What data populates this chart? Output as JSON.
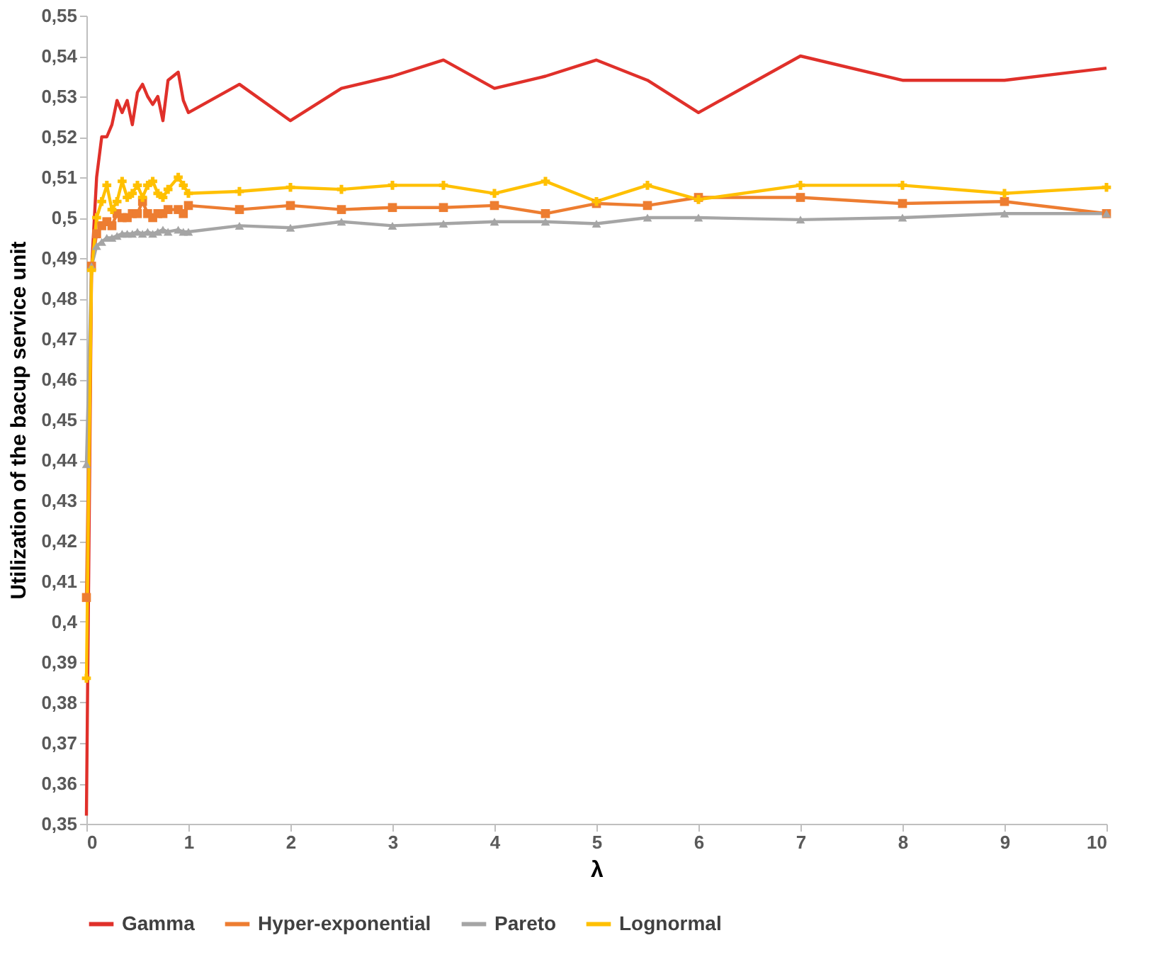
{
  "chart_data": {
    "type": "line",
    "xlabel": "λ",
    "ylabel": "Utilization of the bacup service unit",
    "x": [
      0,
      0.05,
      0.1,
      0.15,
      0.2,
      0.25,
      0.3,
      0.35,
      0.4,
      0.45,
      0.5,
      0.55,
      0.6,
      0.65,
      0.7,
      0.75,
      0.8,
      0.9,
      0.95,
      1,
      1.5,
      2,
      2.5,
      3,
      3.5,
      4,
      4.5,
      5,
      5.5,
      6,
      7,
      8,
      9,
      10
    ],
    "series": [
      {
        "name": "Gamma",
        "color": "#e0302a",
        "marker": "none",
        "values": [
          0.352,
          0.487,
          0.51,
          0.52,
          0.52,
          0.523,
          0.529,
          0.526,
          0.529,
          0.523,
          0.531,
          0.533,
          0.53,
          0.528,
          0.53,
          0.524,
          0.534,
          0.536,
          0.529,
          0.526,
          0.533,
          0.524,
          0.532,
          0.535,
          0.539,
          0.532,
          0.535,
          0.539,
          0.534,
          0.526,
          0.54,
          0.534,
          0.534,
          0.537
        ]
      },
      {
        "name": "Hyper-exponential",
        "color": "#ed7d31",
        "marker": "square",
        "values": [
          0.406,
          0.488,
          0.496,
          0.498,
          0.499,
          0.498,
          0.501,
          0.5,
          0.5,
          0.501,
          0.501,
          0.504,
          0.501,
          0.5,
          0.501,
          0.501,
          0.502,
          0.502,
          0.501,
          0.503,
          0.502,
          0.503,
          0.502,
          0.5025,
          0.5025,
          0.503,
          0.501,
          0.5035,
          0.503,
          0.505,
          0.505,
          0.5035,
          0.504,
          0.501
        ]
      },
      {
        "name": "Pareto",
        "color": "#a5a5a5",
        "marker": "triangle",
        "values": [
          0.439,
          0.488,
          0.493,
          0.494,
          0.495,
          0.495,
          0.4955,
          0.496,
          0.496,
          0.496,
          0.4965,
          0.496,
          0.4965,
          0.496,
          0.4965,
          0.497,
          0.4965,
          0.497,
          0.4965,
          0.4965,
          0.498,
          0.4975,
          0.499,
          0.498,
          0.4985,
          0.499,
          0.499,
          0.4985,
          0.5,
          0.5,
          0.4995,
          0.5,
          0.501,
          0.501
        ]
      },
      {
        "name": "Lognormal",
        "color": "#ffc000",
        "marker": "cross",
        "values": [
          0.386,
          0.487,
          0.5,
          0.504,
          0.508,
          0.502,
          0.504,
          0.509,
          0.505,
          0.506,
          0.508,
          0.505,
          0.508,
          0.509,
          0.506,
          0.505,
          0.507,
          0.51,
          0.508,
          0.506,
          0.5065,
          0.5075,
          0.507,
          0.508,
          0.508,
          0.506,
          0.509,
          0.504,
          0.508,
          0.5045,
          0.508,
          0.508,
          0.506,
          0.5075
        ]
      }
    ],
    "xlim": [
      0,
      10
    ],
    "xticks": [
      0,
      1,
      2,
      3,
      4,
      5,
      6,
      7,
      8,
      9,
      10
    ],
    "ylim": [
      0.35,
      0.55
    ],
    "yticks": [
      {
        "value": 0.35,
        "label": "0,35"
      },
      {
        "value": 0.36,
        "label": "0,36"
      },
      {
        "value": 0.37,
        "label": "0,37"
      },
      {
        "value": 0.38,
        "label": "0,38"
      },
      {
        "value": 0.39,
        "label": "0,39"
      },
      {
        "value": 0.4,
        "label": "0,4"
      },
      {
        "value": 0.41,
        "label": "0,41"
      },
      {
        "value": 0.42,
        "label": "0,42"
      },
      {
        "value": 0.43,
        "label": "0,43"
      },
      {
        "value": 0.44,
        "label": "0,44"
      },
      {
        "value": 0.45,
        "label": "0,45"
      },
      {
        "value": 0.46,
        "label": "0,46"
      },
      {
        "value": 0.47,
        "label": "0,47"
      },
      {
        "value": 0.48,
        "label": "0,48"
      },
      {
        "value": 0.49,
        "label": "0,49"
      },
      {
        "value": 0.5,
        "label": "0,5"
      },
      {
        "value": 0.51,
        "label": "0,51"
      },
      {
        "value": 0.52,
        "label": "0,52"
      },
      {
        "value": 0.53,
        "label": "0,53"
      },
      {
        "value": 0.54,
        "label": "0,54"
      },
      {
        "value": 0.55,
        "label": "0,55"
      }
    ],
    "grid": false,
    "legend": "bottom",
    "line_style": "solid"
  }
}
